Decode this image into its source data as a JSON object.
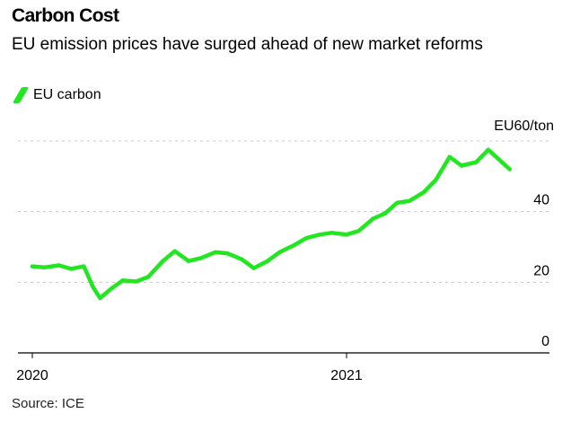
{
  "header": {
    "title": "Carbon Cost",
    "subtitle": "EU emission prices have surged ahead of new market reforms"
  },
  "legend": {
    "label": "EU carbon",
    "color": "#22e620"
  },
  "source": "Source: ICE",
  "chart_data": {
    "type": "line",
    "title": "Carbon Cost",
    "subtitle": "EU emission prices have surged ahead of new market reforms",
    "ylabel": "EU60/ton",
    "xlabel": "",
    "ylim": [
      0,
      60
    ],
    "grid": true,
    "y_axis_side": "right",
    "legend_position": "top-left",
    "x_ticks": [
      "2020",
      "2021"
    ],
    "y_ticks": [
      0,
      20,
      40
    ],
    "series": [
      {
        "name": "EU carbon",
        "color": "#22e620",
        "x": [
          "2020-01-01",
          "2020-01-15",
          "2020-02-01",
          "2020-02-15",
          "2020-03-01",
          "2020-03-12",
          "2020-03-20",
          "2020-04-01",
          "2020-04-15",
          "2020-05-01",
          "2020-05-15",
          "2020-06-01",
          "2020-06-15",
          "2020-07-01",
          "2020-07-15",
          "2020-08-01",
          "2020-08-15",
          "2020-09-01",
          "2020-09-15",
          "2020-10-01",
          "2020-10-15",
          "2020-11-01",
          "2020-11-15",
          "2020-12-01",
          "2020-12-15",
          "2021-01-01",
          "2021-01-15",
          "2021-02-01",
          "2021-02-15",
          "2021-03-01",
          "2021-03-15",
          "2021-04-01",
          "2021-04-15",
          "2021-05-01",
          "2021-05-15",
          "2021-06-01",
          "2021-06-15",
          "2021-07-01",
          "2021-07-10"
        ],
        "values": [
          24.5,
          24.2,
          24.8,
          23.8,
          24.5,
          18.5,
          15.5,
          18.0,
          20.5,
          20.2,
          21.5,
          26.0,
          28.8,
          26.0,
          26.8,
          28.5,
          28.2,
          26.5,
          24.0,
          26.0,
          28.5,
          30.5,
          32.5,
          33.5,
          34.0,
          33.5,
          34.5,
          38.0,
          39.5,
          42.5,
          43.0,
          45.5,
          49.0,
          55.5,
          53.0,
          54.0,
          57.5,
          54.0,
          52.0
        ]
      }
    ]
  }
}
